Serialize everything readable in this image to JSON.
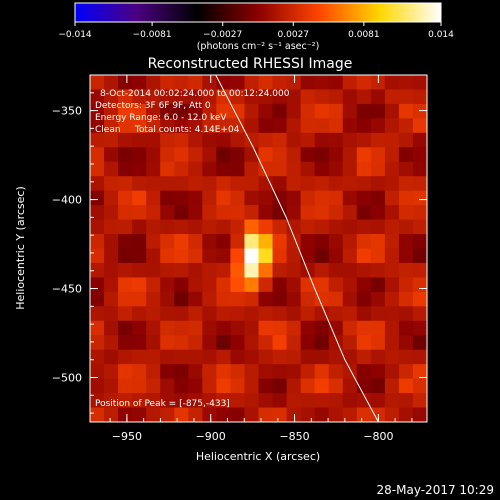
{
  "chart_data": {
    "type": "heatmap",
    "title": "Reconstructed RHESSI Image",
    "xlabel": "Heliocentric X (arcsec)",
    "ylabel": "Heliocentric Y (arcsec)",
    "xlim": [
      -972,
      -771
    ],
    "ylim": [
      -525,
      -330
    ],
    "x_ticks": [
      -950,
      -900,
      -850,
      -800
    ],
    "x_tick_labels": [
      "−950",
      "−900",
      "−850",
      "−800"
    ],
    "y_ticks": [
      -350,
      -400,
      -450,
      -500
    ],
    "y_tick_labels": [
      "−350",
      "−400",
      "−450",
      "−500"
    ],
    "colorbar": {
      "min": -0.014,
      "max": 0.014,
      "ticks": [
        -0.014,
        -0.0081,
        -0.0027,
        0.0027,
        0.0081,
        0.014
      ],
      "tick_labels": [
        "−0.014",
        "−0.0081",
        "−0.0027",
        "0.0027",
        "0.0081",
        "0.014"
      ],
      "unit_label": "(photons cm⁻² s⁻¹ asec⁻²)",
      "colors": [
        "#0000ff",
        "#4b0082",
        "#000000",
        "#8b0000",
        "#ff4500",
        "#ffd700",
        "#ffffff"
      ]
    },
    "annotations": [
      "8-Oct-2014 00:02:24.000 to 00:12:24.000",
      "Detectors: 3F 6F 9F, Att 0",
      "Energy Range: 6.0 - 12.0 keV",
      "Clean     Total counts: 4.14E+04"
    ],
    "peak_label": "Position of Peak = [-875,-433]",
    "peak": {
      "x": -875,
      "y": -433,
      "value": 0.014,
      "sx": 6,
      "sy": 11
    },
    "limb_curve": [
      [
        -897,
        -330
      ],
      [
        -875,
        -370
      ],
      [
        -855,
        -410
      ],
      [
        -838,
        -450
      ],
      [
        -820,
        -490
      ],
      [
        -800,
        -525
      ]
    ],
    "timestamp": "28-May-2017 10:29"
  }
}
